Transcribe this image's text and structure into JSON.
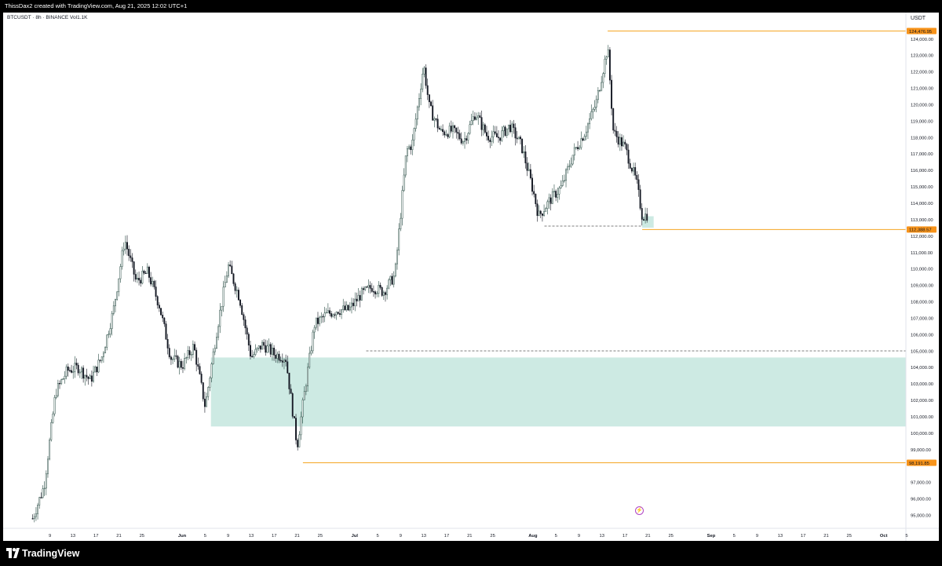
{
  "header": {
    "attribution": "ThissDax2 created with TradingView.com, Aug 21, 2025 12:02 UTC+1"
  },
  "chart": {
    "symbol_line": "BTCUSDT · 8h · BINANCE  Vol1.1K",
    "currency": "USDT"
  },
  "price_labels": [
    {
      "text": "124,476.95",
      "value": 124476.95
    },
    {
      "text": "112,388.57",
      "value": 112388.57
    },
    {
      "text": "98,191.85",
      "value": 98191.85
    }
  ],
  "footer": {
    "logo_text": "TradingView"
  },
  "colors": {
    "up_candle": "#2a4d45",
    "down_candle": "#131722",
    "zone_fill": "#cdeae3",
    "level_line": "#f5a623",
    "price_tag_bg": "#f7931a",
    "dashed_line": "#555555",
    "event_icon": "#b044c4"
  },
  "chart_data": {
    "type": "candlestick",
    "title": "BTCUSDT · 8h · BINANCE",
    "ylabel": "USDT",
    "ylim": [
      94200,
      125600
    ],
    "y_ticks": [
      {
        "value": 95000,
        "label": "95,000.00"
      },
      {
        "value": 96000,
        "label": "96,000.00"
      },
      {
        "value": 97000,
        "label": "97,000.00"
      },
      {
        "value": 99000,
        "label": "99,000.00"
      },
      {
        "value": 100000,
        "label": "100,000.00"
      },
      {
        "value": 101000,
        "label": "101,000.00"
      },
      {
        "value": 102000,
        "label": "102,000.00"
      },
      {
        "value": 103000,
        "label": "103,000.00"
      },
      {
        "value": 104000,
        "label": "104,000.00"
      },
      {
        "value": 105000,
        "label": "105,000.00"
      },
      {
        "value": 106000,
        "label": "106,000.00"
      },
      {
        "value": 107000,
        "label": "107,000.00"
      },
      {
        "value": 108000,
        "label": "108,000.00"
      },
      {
        "value": 109000,
        "label": "109,000.00"
      },
      {
        "value": 110000,
        "label": "110,000.00"
      },
      {
        "value": 111000,
        "label": "111,000.00"
      },
      {
        "value": 112000,
        "label": "112,000.00"
      },
      {
        "value": 113000,
        "label": "113,000.00"
      },
      {
        "value": 114000,
        "label": "114,000.00"
      },
      {
        "value": 115000,
        "label": "115,000.00"
      },
      {
        "value": 116000,
        "label": "116,000.00"
      },
      {
        "value": 117000,
        "label": "117,000.00"
      },
      {
        "value": 118000,
        "label": "118,000.00"
      },
      {
        "value": 119000,
        "label": "119,000.00"
      },
      {
        "value": 120000,
        "label": "120,000.00"
      },
      {
        "value": 121000,
        "label": "121,000.00"
      },
      {
        "value": 122000,
        "label": "122,000.00"
      },
      {
        "value": 123000,
        "label": "123,000.00"
      },
      {
        "value": 124000,
        "label": "124,000.00"
      }
    ],
    "x_ticks": [
      {
        "date": "2025-05-09",
        "label": "9"
      },
      {
        "date": "2025-05-13",
        "label": "13"
      },
      {
        "date": "2025-05-17",
        "label": "17"
      },
      {
        "date": "2025-05-21",
        "label": "21"
      },
      {
        "date": "2025-05-25",
        "label": "25"
      },
      {
        "date": "2025-06-01",
        "label": "Jun"
      },
      {
        "date": "2025-06-05",
        "label": "5"
      },
      {
        "date": "2025-06-09",
        "label": "9"
      },
      {
        "date": "2025-06-13",
        "label": "13"
      },
      {
        "date": "2025-06-17",
        "label": "17"
      },
      {
        "date": "2025-06-21",
        "label": "21"
      },
      {
        "date": "2025-06-25",
        "label": "25"
      },
      {
        "date": "2025-07-01",
        "label": "Jul"
      },
      {
        "date": "2025-07-05",
        "label": "5"
      },
      {
        "date": "2025-07-09",
        "label": "9"
      },
      {
        "date": "2025-07-13",
        "label": "13"
      },
      {
        "date": "2025-07-17",
        "label": "17"
      },
      {
        "date": "2025-07-21",
        "label": "21"
      },
      {
        "date": "2025-07-25",
        "label": "25"
      },
      {
        "date": "2025-08-01",
        "label": "Aug"
      },
      {
        "date": "2025-08-05",
        "label": "5"
      },
      {
        "date": "2025-08-09",
        "label": "9"
      },
      {
        "date": "2025-08-13",
        "label": "13"
      },
      {
        "date": "2025-08-17",
        "label": "17"
      },
      {
        "date": "2025-08-21",
        "label": "21"
      },
      {
        "date": "2025-08-25",
        "label": "25"
      },
      {
        "date": "2025-09-01",
        "label": "Sep"
      },
      {
        "date": "2025-09-05",
        "label": "5"
      },
      {
        "date": "2025-09-09",
        "label": "9"
      },
      {
        "date": "2025-09-13",
        "label": "13"
      },
      {
        "date": "2025-09-17",
        "label": "17"
      },
      {
        "date": "2025-09-21",
        "label": "21"
      },
      {
        "date": "2025-09-25",
        "label": "25"
      },
      {
        "date": "2025-10-01",
        "label": "Oct"
      },
      {
        "date": "2025-10-05",
        "label": "5"
      }
    ],
    "series": [
      {
        "name": "BTCUSDT",
        "x": [
          "2025-05-06",
          "2025-05-08",
          "2025-05-10",
          "2025-05-12",
          "2025-05-14",
          "2025-05-16",
          "2025-05-18",
          "2025-05-20",
          "2025-05-22",
          "2025-05-24",
          "2025-05-26",
          "2025-05-28",
          "2025-05-30",
          "2025-06-01",
          "2025-06-03",
          "2025-06-05",
          "2025-06-07",
          "2025-06-09",
          "2025-06-11",
          "2025-06-13",
          "2025-06-15",
          "2025-06-17",
          "2025-06-19",
          "2025-06-21",
          "2025-06-22",
          "2025-06-24",
          "2025-06-26",
          "2025-06-28",
          "2025-06-30",
          "2025-07-02",
          "2025-07-04",
          "2025-07-06",
          "2025-07-08",
          "2025-07-10",
          "2025-07-11",
          "2025-07-13",
          "2025-07-14",
          "2025-07-16",
          "2025-07-18",
          "2025-07-20",
          "2025-07-22",
          "2025-07-24",
          "2025-07-26",
          "2025-07-28",
          "2025-07-30",
          "2025-08-01",
          "2025-08-02",
          "2025-08-04",
          "2025-08-06",
          "2025-08-08",
          "2025-08-10",
          "2025-08-12",
          "2025-08-14",
          "2025-08-15",
          "2025-08-17",
          "2025-08-19",
          "2025-08-20",
          "2025-08-21"
        ],
        "values": [
          94800,
          96800,
          102500,
          103800,
          104000,
          103200,
          104600,
          107400,
          111800,
          109200,
          109800,
          107800,
          104600,
          104100,
          105300,
          101600,
          106200,
          110200,
          108200,
          104600,
          105400,
          104800,
          104600,
          99200,
          101800,
          106600,
          107200,
          107500,
          107500,
          108400,
          108900,
          108600,
          109600,
          117200,
          117600,
          122400,
          119800,
          118300,
          118400,
          117800,
          119500,
          118100,
          118000,
          118700,
          117500,
          114800,
          113200,
          114200,
          115000,
          117000,
          118300,
          120100,
          123500,
          118300,
          117400,
          115300,
          113200,
          113300
        ]
      }
    ],
    "annotations": [
      {
        "type": "horizontal_level",
        "value": 124476.95,
        "from": "2025-08-14",
        "label": "124,476.95"
      },
      {
        "type": "horizontal_level",
        "value": 112388.57,
        "from": "2025-08-20",
        "label": "112,388.57"
      },
      {
        "type": "horizontal_level",
        "value": 98191.85,
        "from": "2025-06-22",
        "label": "98,191.85"
      },
      {
        "type": "dashed_level",
        "value": 105000,
        "from": "2025-07-03"
      },
      {
        "type": "dashed_level",
        "value": 112600,
        "from": "2025-08-03",
        "to": "2025-08-20"
      },
      {
        "type": "zone",
        "from": "2025-06-06",
        "y_low": 100400,
        "y_high": 104600
      },
      {
        "type": "zone",
        "from": "2025-08-20",
        "to": "2025-08-22",
        "y_low": 112500,
        "y_high": 113200
      }
    ],
    "grid": false,
    "legend": "none"
  }
}
